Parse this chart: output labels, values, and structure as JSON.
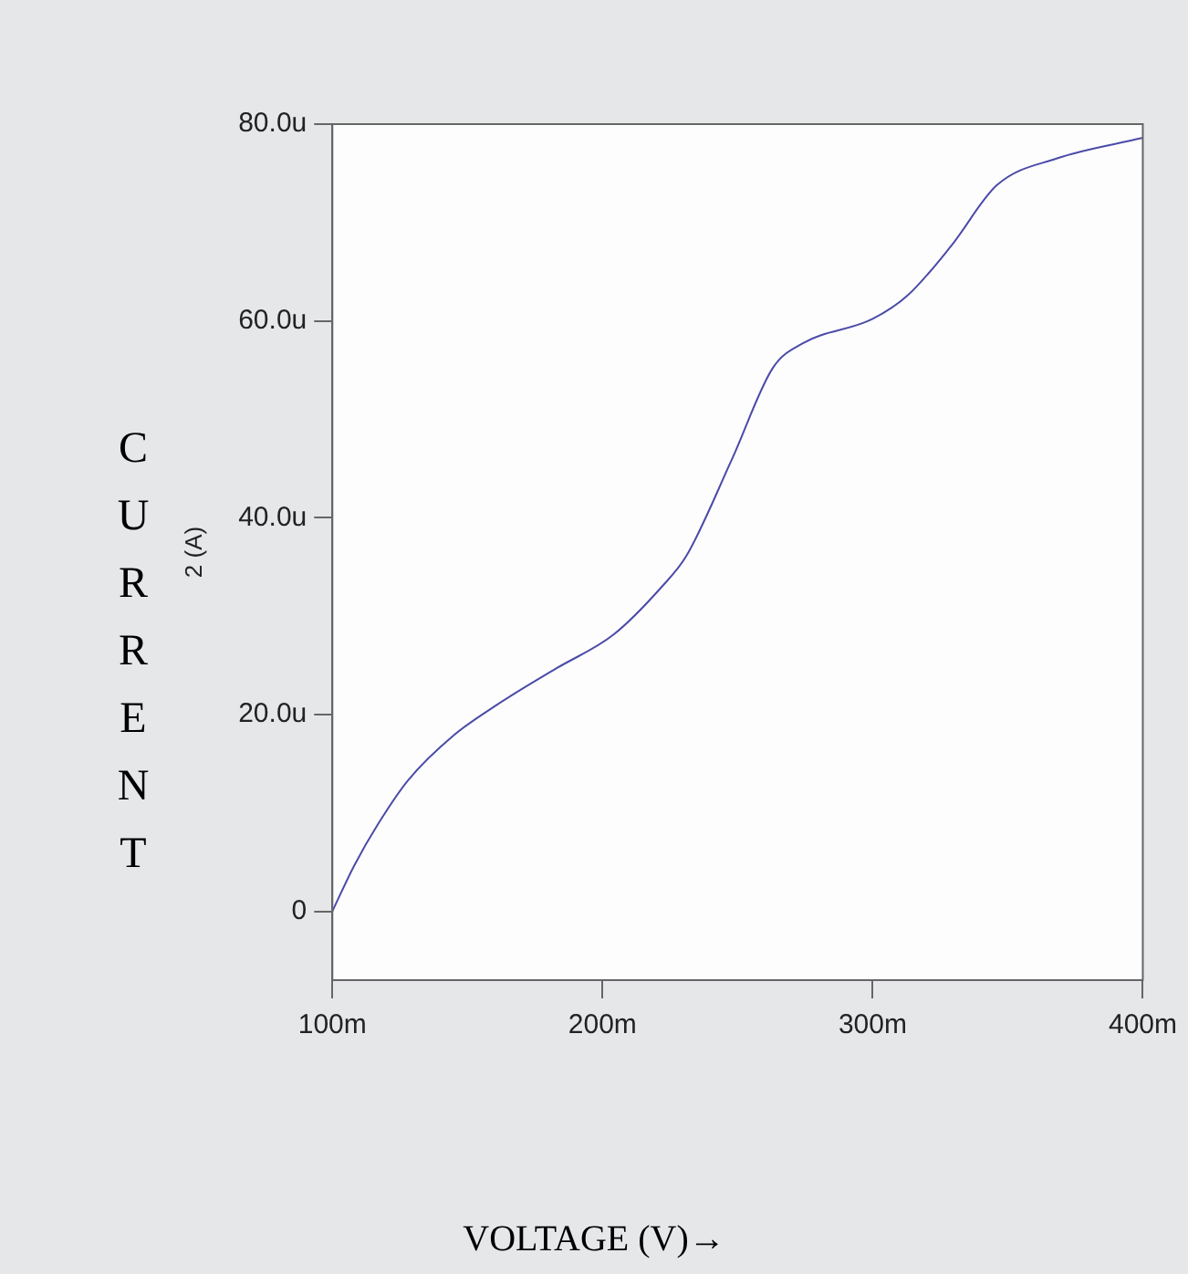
{
  "chart_data": {
    "type": "line",
    "xlabel": "VOLTAGE (V)→",
    "ylabel": "2 (A)",
    "annotations": [
      "CURRENT"
    ],
    "x": [
      100,
      108,
      117,
      128,
      145,
      161,
      183,
      204,
      222,
      231,
      248,
      263,
      274,
      300,
      313,
      329,
      346,
      368,
      400
    ],
    "series": [
      {
        "color": "#4b4ba8",
        "values": [
          0,
          4.6,
          8.9,
          13.3,
          17.9,
          21,
          24.7,
          28.1,
          33,
          36.1,
          46,
          55.2,
          57.7,
          60.2,
          62.6,
          67.6,
          73.8,
          76.5,
          78.6
        ]
      }
    ],
    "xlim": [
      100,
      400
    ],
    "xticks": [
      {
        "value": 100,
        "label": "100m"
      },
      {
        "value": 200,
        "label": "200m"
      },
      {
        "value": 300,
        "label": "300m"
      },
      {
        "value": 400,
        "label": "400m"
      }
    ],
    "ylim": [
      -7,
      80
    ],
    "yticks": [
      0,
      {
        "value": 20,
        "label": "20.0u"
      },
      {
        "value": 40,
        "label": "40.0u"
      },
      {
        "value": 60,
        "label": "60.0u"
      },
      {
        "value": 80,
        "label": "80.0u"
      }
    ],
    "grid": false,
    "legend": false,
    "marker": "none",
    "line_style": "solid"
  }
}
